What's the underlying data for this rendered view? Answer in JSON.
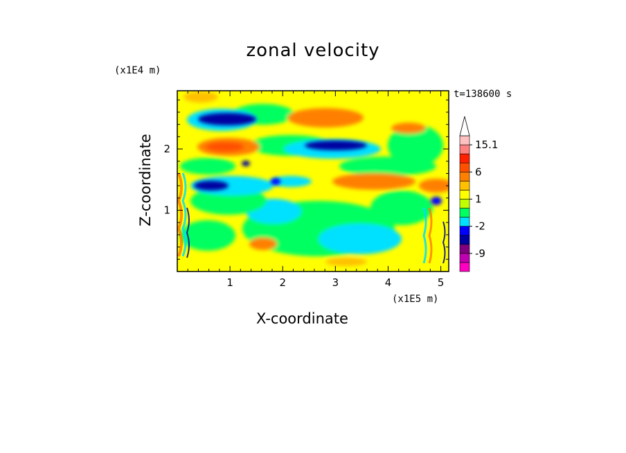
{
  "chart_data": {
    "type": "heatmap",
    "title": "zonal velocity",
    "xlabel": "X-coordinate",
    "ylabel": "Z-coordinate",
    "x_multiplier": "(x1E5 m)",
    "y_multiplier": "(x1E4 m)",
    "annotation": "t=138600 s",
    "xlim": [
      0,
      5.15
    ],
    "ylim": [
      0,
      2.95
    ],
    "xticks": [
      "1",
      "2",
      "3",
      "4",
      "5"
    ],
    "xtick_values": [
      1,
      2,
      3,
      4,
      5
    ],
    "yticks": [
      "1",
      "2"
    ],
    "ytick_values": [
      1,
      2
    ],
    "colorbar": {
      "labels": [
        "15.1",
        "6",
        "1",
        "-2",
        "-9"
      ],
      "label_values": [
        15.1,
        6,
        1,
        -2,
        -9
      ],
      "colors": [
        "#ff00c0",
        "#c000b0",
        "#800080",
        "#0000a0",
        "#0000ff",
        "#00e0ff",
        "#00ff60",
        "#c0ff00",
        "#ffff00",
        "#ffc000",
        "#ff8000",
        "#ff5000",
        "#ff2000",
        "#ff8080",
        "#ffc0c0"
      ],
      "extend_top": true
    },
    "levels": [
      -12,
      -9,
      -6,
      -4,
      -2,
      -1,
      0,
      1,
      2,
      3,
      6,
      9,
      12,
      15.1
    ],
    "pattern": "layered, sheared bands of positive and negative zonal velocity; strong negative jets near z≈2.5 at x≈0.6–1.3, z≈2.1 at x≈2.6–3.5 and z≈1.4 at x≈0.5–1.0; positive bands near z≈2.1 at x≈0.5–1.5 and z≈1.4 at x≈2.5–4.5"
  }
}
